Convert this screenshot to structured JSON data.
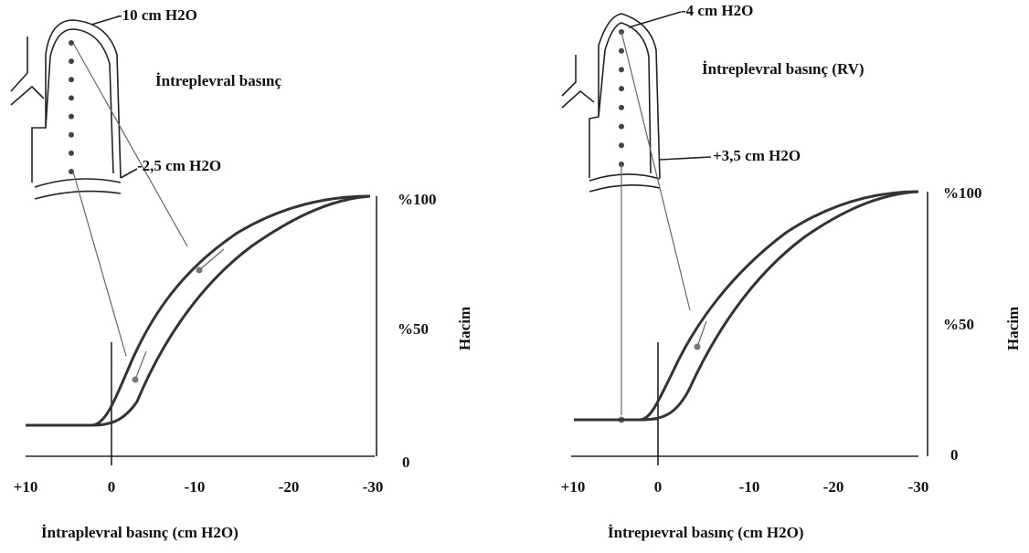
{
  "panels": [
    {
      "lung_labels": {
        "top": "-10 cm H2O",
        "bottom": "-2,5 cm H2O"
      },
      "title": "İntreplevral basınç",
      "x_ticks": [
        "+10",
        "0",
        "-10",
        "-20",
        "-30"
      ],
      "y_ticks": [
        "%100",
        "%50",
        "0"
      ],
      "y_label": "Hacim",
      "x_label": "İntraplevral basınç (cm H2O)"
    },
    {
      "lung_labels": {
        "top": "-4 cm H2O",
        "bottom": "+3,5 cm H2O"
      },
      "title": "İntreplevral basınç (RV)",
      "x_ticks": [
        "+10",
        "0",
        "-10",
        "-20",
        "-30"
      ],
      "y_ticks": [
        "%100",
        "%50",
        "0"
      ],
      "y_label": "Hacim",
      "x_label": "İntrepıevral basınç (cm H2O)"
    }
  ]
}
